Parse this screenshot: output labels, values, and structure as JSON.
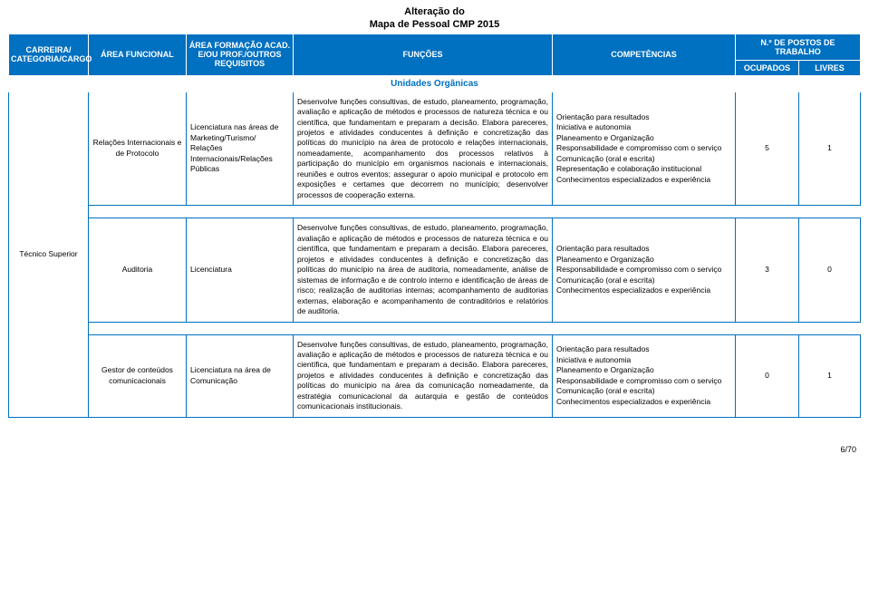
{
  "doc_title_line1": "Alteração do",
  "doc_title_line2": "Mapa de Pessoal CMP 2015",
  "header": {
    "col1": "CARREIRA/ CATEGORIA/CARGO",
    "col2": "ÁREA FUNCIONAL",
    "col3": "ÁREA FORMAÇÃO ACAD. E/OU PROF./OUTROS REQUISITOS",
    "col4": "FUNÇÕES",
    "col5": "COMPETÊNCIAS",
    "col6_top": "N.º DE POSTOS DE TRABALHO",
    "col6a": "OCUPADOS",
    "col6b": "LIVRES"
  },
  "units_label": "Unidades Orgânicas",
  "career_label": "Técnico Superior",
  "rows": [
    {
      "area_funcional": "Relações Internacionais e de Protocolo",
      "formacao": "Licenciatura nas áreas de Marketing/Turismo/ Relações Internacionais/Relações Públicas",
      "funcoes": "Desenvolve funções consultivas, de estudo, planeamento, programação, avaliação e aplicação de métodos e processos de natureza técnica e ou científica, que fundamentam e preparam a decisão. Elabora pareceres, projetos e atividades conducentes à definição e concretização das políticas do município na área de protocolo e relações internacionais, nomeadamente, acompanhamento dos processos relativos à participação do município em organismos nacionais e internacionais, reuniões e outros eventos; assegurar o apoio municipal e protocolo em exposições e certames que decorrem no município; desenvolver processos de cooperação externa.",
      "competencias": "Orientação para resultados\nIniciativa e autonomia\nPlaneamento e Organização\nResponsabilidade e compromisso com o serviço\nComunicação (oral e escrita)\nRepresentação e colaboração institucional\nConhecimentos especializados e experiência",
      "ocupados": "5",
      "livres": "1"
    },
    {
      "area_funcional": "Auditoria",
      "formacao": "Licenciatura",
      "funcoes": "Desenvolve funções consultivas, de estudo, planeamento, programação, avaliação e aplicação de métodos e processos de natureza técnica e ou científica, que fundamentam e preparam a decisão. Elabora pareceres, projetos e atividades conducentes à definição e concretização das políticas do município na área de auditoria, nomeadamente, análise de sistemas de informação e de controlo interno e identificação de áreas de risco; realização de auditorias internas; acompanhamento de auditorias externas, elaboração e acompanhamento de contraditórios e relatórios de auditoria.",
      "competencias": "Orientação para resultados\nPlaneamento e Organização\nResponsabilidade e compromisso com o serviço\nComunicação (oral e escrita)\nConhecimentos especializados e experiência",
      "ocupados": "3",
      "livres": "0"
    },
    {
      "area_funcional": "Gestor de conteúdos comunicacionais",
      "formacao": "Licenciatura na área de Comunicação",
      "funcoes": "Desenvolve funções consultivas, de estudo, planeamento, programação, avaliação e aplicação de métodos e processos de natureza técnica e ou científica, que fundamentam e preparam a decisão. Elabora pareceres, projetos e atividades conducentes à definição e concretização das políticas do município na área da comunicação nomeadamente, da estratégia comunicacional da autarquia e gestão de conteúdos comunicacionais institucionais.",
      "competencias": "Orientação para resultados\nIniciativa e autonomia\nPlaneamento e Organização\nResponsabilidade e compromisso com o serviço\nComunicação (oral e escrita)\nConhecimentos especializados e experiência",
      "ocupados": "0",
      "livres": "1"
    }
  ],
  "page_number": "6/70",
  "colors": {
    "header_bg": "#0070c0",
    "header_text": "#ffffff",
    "border": "#0070c0",
    "body_text": "#000000"
  }
}
